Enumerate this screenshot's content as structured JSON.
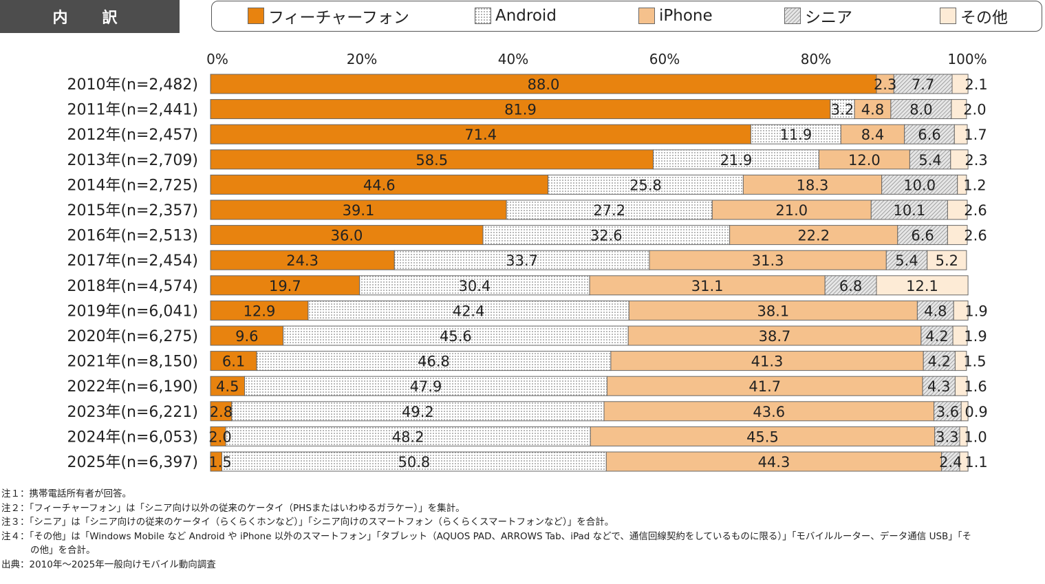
{
  "header": {
    "title": "内　訳"
  },
  "legend": [
    {
      "label": "フィーチャーフォン",
      "pattern": "solid-orange"
    },
    {
      "label": "Android",
      "pattern": "dots"
    },
    {
      "label": "iPhone",
      "pattern": "solid-peach"
    },
    {
      "label": "シニア",
      "pattern": "hatch"
    },
    {
      "label": "その他",
      "pattern": "solid-cream"
    }
  ],
  "colors": {
    "feature_phone": "#e8830f",
    "android_bg": "#ffffff",
    "android_dot": "#555555",
    "iphone": "#f5c18c",
    "senior_bg": "#e6e6e6",
    "senior_line": "#777777",
    "other": "#fdebd6",
    "bar_border": "#666666"
  },
  "chart_data": {
    "type": "bar",
    "orientation": "horizontal-stacked-100",
    "xlim": [
      0,
      100
    ],
    "x_ticks": [
      "0%",
      "20%",
      "40%",
      "60%",
      "80%",
      "100%"
    ],
    "categories": [
      "2010年(n=2,482)",
      "2011年(n=2,441)",
      "2012年(n=2,457)",
      "2013年(n=2,709)",
      "2014年(n=2,725)",
      "2015年(n=2,357)",
      "2016年(n=2,513)",
      "2017年(n=2,454)",
      "2018年(n=4,574)",
      "2019年(n=6,041)",
      "2020年(n=6,275)",
      "2021年(n=8,150)",
      "2022年(n=6,190)",
      "2023年(n=6,221)",
      "2024年(n=6,053)",
      "2025年(n=6,397)"
    ],
    "series": [
      {
        "name": "フィーチャーフォン",
        "values": [
          88.0,
          81.9,
          71.4,
          58.5,
          44.6,
          39.1,
          36.0,
          24.3,
          19.7,
          12.9,
          9.6,
          6.1,
          4.5,
          2.8,
          2.0,
          1.5
        ]
      },
      {
        "name": "Android",
        "values": [
          0,
          3.2,
          11.9,
          21.9,
          25.8,
          27.2,
          32.6,
          33.7,
          30.4,
          42.4,
          45.6,
          46.8,
          47.9,
          49.2,
          48.2,
          50.8
        ]
      },
      {
        "name": "iPhone",
        "values": [
          2.3,
          4.8,
          8.4,
          12.0,
          18.3,
          21.0,
          22.2,
          31.3,
          31.1,
          38.1,
          38.7,
          41.3,
          41.7,
          43.6,
          45.5,
          44.3
        ]
      },
      {
        "name": "シニア",
        "values": [
          7.7,
          8.0,
          6.6,
          5.4,
          10.0,
          10.1,
          6.6,
          5.4,
          6.8,
          4.8,
          4.2,
          4.2,
          4.3,
          3.6,
          3.3,
          2.4
        ]
      },
      {
        "name": "その他",
        "values": [
          2.1,
          2.0,
          1.7,
          2.3,
          1.2,
          2.6,
          2.6,
          5.2,
          12.1,
          1.9,
          1.9,
          1.5,
          1.6,
          0.9,
          1.0,
          1.1
        ]
      }
    ],
    "value_labels": [
      [
        "88.0",
        "",
        "2.3",
        "7.7",
        "2.1"
      ],
      [
        "81.9",
        "3.2",
        "4.8",
        "8.0",
        "2.0"
      ],
      [
        "71.4",
        "11.9",
        "8.4",
        "6.6",
        "1.7"
      ],
      [
        "58.5",
        "21.9",
        "12.0",
        "5.4",
        "2.3"
      ],
      [
        "44.6",
        "25.8",
        "18.3",
        "10.0",
        "1.2"
      ],
      [
        "39.1",
        "27.2",
        "21.0",
        "10.1",
        "2.6"
      ],
      [
        "36.0",
        "32.6",
        "22.2",
        "6.6",
        "2.6"
      ],
      [
        "24.3",
        "33.7",
        "31.3",
        "5.4",
        "5.2"
      ],
      [
        "19.7",
        "30.4",
        "31.1",
        "6.8",
        "12.1"
      ],
      [
        "12.9",
        "42.4",
        "38.1",
        "4.8",
        "1.9"
      ],
      [
        "9.6",
        "45.6",
        "38.7",
        "4.2",
        "1.9"
      ],
      [
        "6.1",
        "46.8",
        "41.3",
        "4.2",
        "1.5"
      ],
      [
        "4.5",
        "47.9",
        "41.7",
        "4.3",
        "1.6"
      ],
      [
        "2.8",
        "49.2",
        "43.6",
        "3.6",
        "0.9"
      ],
      [
        "2.0",
        "48.2",
        "45.5",
        "3.3",
        "1.0"
      ],
      [
        "1.5",
        "50.8",
        "44.3",
        "2.4",
        "1.1"
      ]
    ]
  },
  "notes": [
    "注１：携帯電話所有者が回答。",
    "注２：「フィーチャーフォン」は「シニア向け以外の従来のケータイ（PHSまたはいわゆるガラケー）」を集計。",
    "注３：「シニア」は「シニア向けの従来のケータイ（らくらくホンなど）」「シニア向けのスマートフォン（らくらくスマートフォンなど）」を合計。",
    "注４：「その他」は「Windows Mobile など Android や iPhone 以外のスマートフォン」「タブレット（AQUOS PAD、ARROWS Tab、iPad などで、通信回線契約をしているものに限る）」「モバイルルーター、データ通信 USB」「そ",
    "の他」を合計。",
    "出典：2010年～2025年一般向けモバイル動向調査"
  ]
}
